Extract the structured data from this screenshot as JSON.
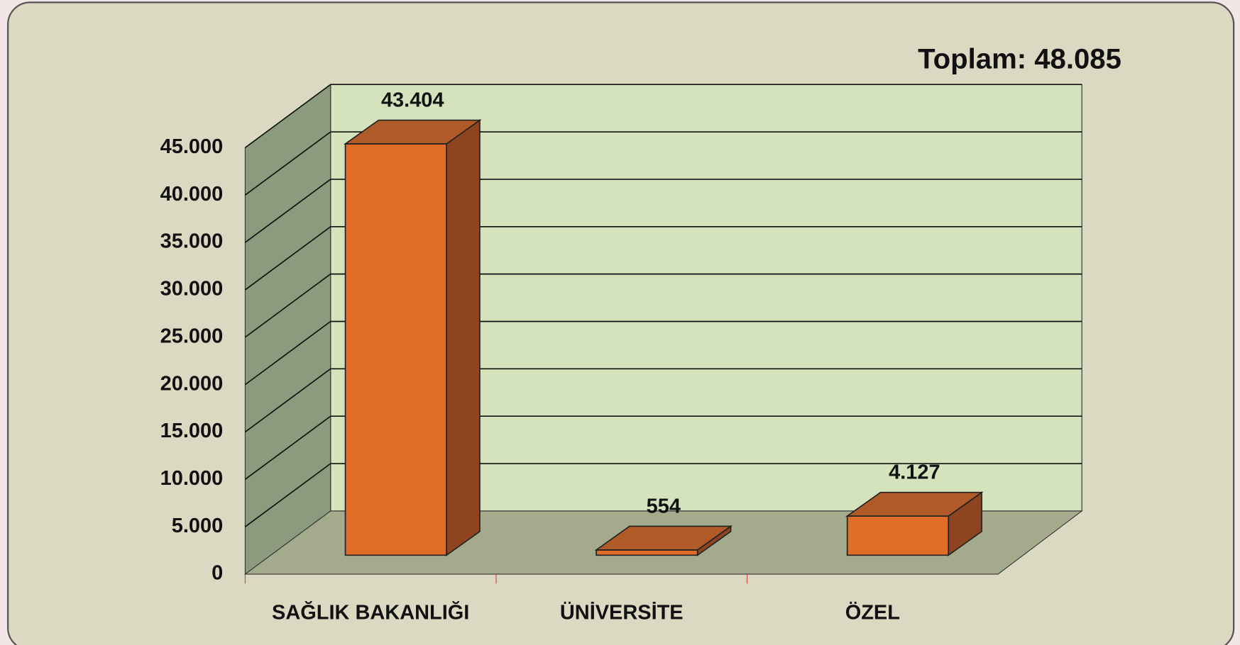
{
  "chart_data": {
    "type": "bar3d",
    "annotation": "Toplam: 48.085",
    "categories": [
      "SAĞLIK BAKANLIĞI",
      "ÜNİVERSİTE",
      "ÖZEL"
    ],
    "values": [
      43404,
      554,
      4127
    ],
    "value_labels": [
      "43.404",
      "554",
      "4.127"
    ],
    "color": "#e06c28",
    "ylim": [
      0,
      45000
    ],
    "yticks": [
      0,
      {
        "value": 5000,
        "label": "5.000"
      },
      {
        "value": 10000,
        "label": "10.000"
      },
      {
        "value": 15000,
        "label": "15.000"
      },
      {
        "value": 20000,
        "label": "20.000"
      },
      {
        "value": 25000,
        "label": "25.000"
      },
      {
        "value": 30000,
        "label": "30.000"
      },
      {
        "value": 35000,
        "label": "35.000"
      },
      {
        "value": 40000,
        "label": "40.000"
      },
      {
        "value": 45000,
        "label": "45.000"
      }
    ],
    "grid": true
  }
}
